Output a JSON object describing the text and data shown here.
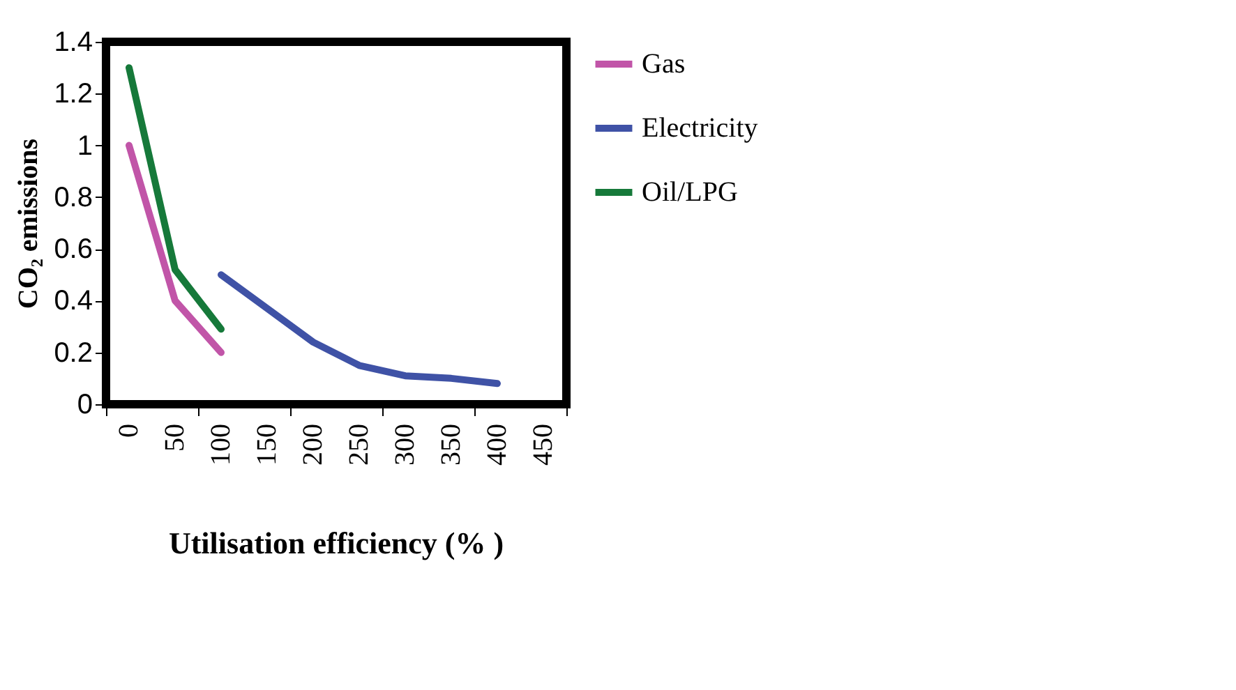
{
  "chart_data": {
    "type": "line",
    "xlabel": "Utilisation efficiency (% )",
    "ylabel": "CO₂ emissions",
    "categories": [
      "0",
      "50",
      "100",
      "150",
      "200",
      "250",
      "300",
      "350",
      "400",
      "450"
    ],
    "series": [
      {
        "name": "Gas",
        "color": "#c155a8",
        "values": [
          1.0,
          0.4,
          0.2,
          null,
          null,
          null,
          null,
          null,
          null,
          null
        ]
      },
      {
        "name": "Electricity",
        "color": "#3f52a6",
        "values": [
          null,
          null,
          0.5,
          0.37,
          0.24,
          0.15,
          0.11,
          0.1,
          0.08,
          null
        ]
      },
      {
        "name": "Oil/LPG",
        "color": "#16793a",
        "values": [
          1.3,
          0.52,
          0.29,
          null,
          null,
          null,
          null,
          null,
          null,
          null
        ]
      }
    ],
    "ylim": [
      0,
      1.4
    ],
    "yticks": [
      0,
      0.2,
      0.4,
      0.6,
      0.8,
      1,
      1.2,
      1.4
    ],
    "grid": false,
    "legend": "right",
    "marker": "none",
    "line_style": "solid"
  }
}
